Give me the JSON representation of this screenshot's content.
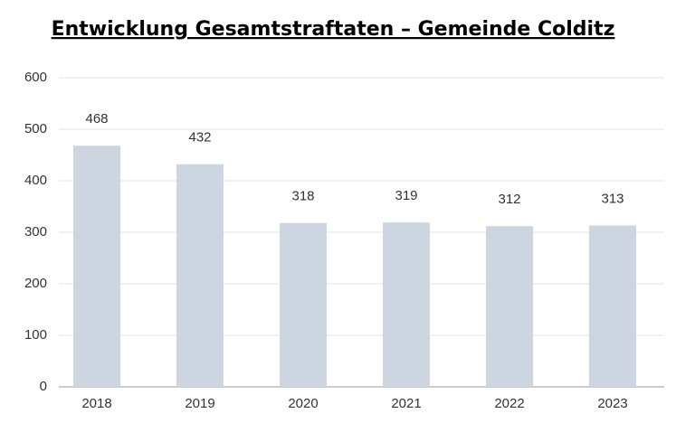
{
  "chart_data": {
    "type": "bar",
    "title": "Entwicklung Gesamtstraftaten – Gemeinde Colditz",
    "categories": [
      "2018",
      "2019",
      "2020",
      "2021",
      "2022",
      "2023"
    ],
    "values": [
      468,
      432,
      318,
      319,
      312,
      313
    ],
    "color": "#cdd5e0",
    "ylim": [
      0,
      600
    ],
    "yticks": [
      0,
      100,
      200,
      300,
      400,
      500,
      600
    ],
    "grid": true
  }
}
